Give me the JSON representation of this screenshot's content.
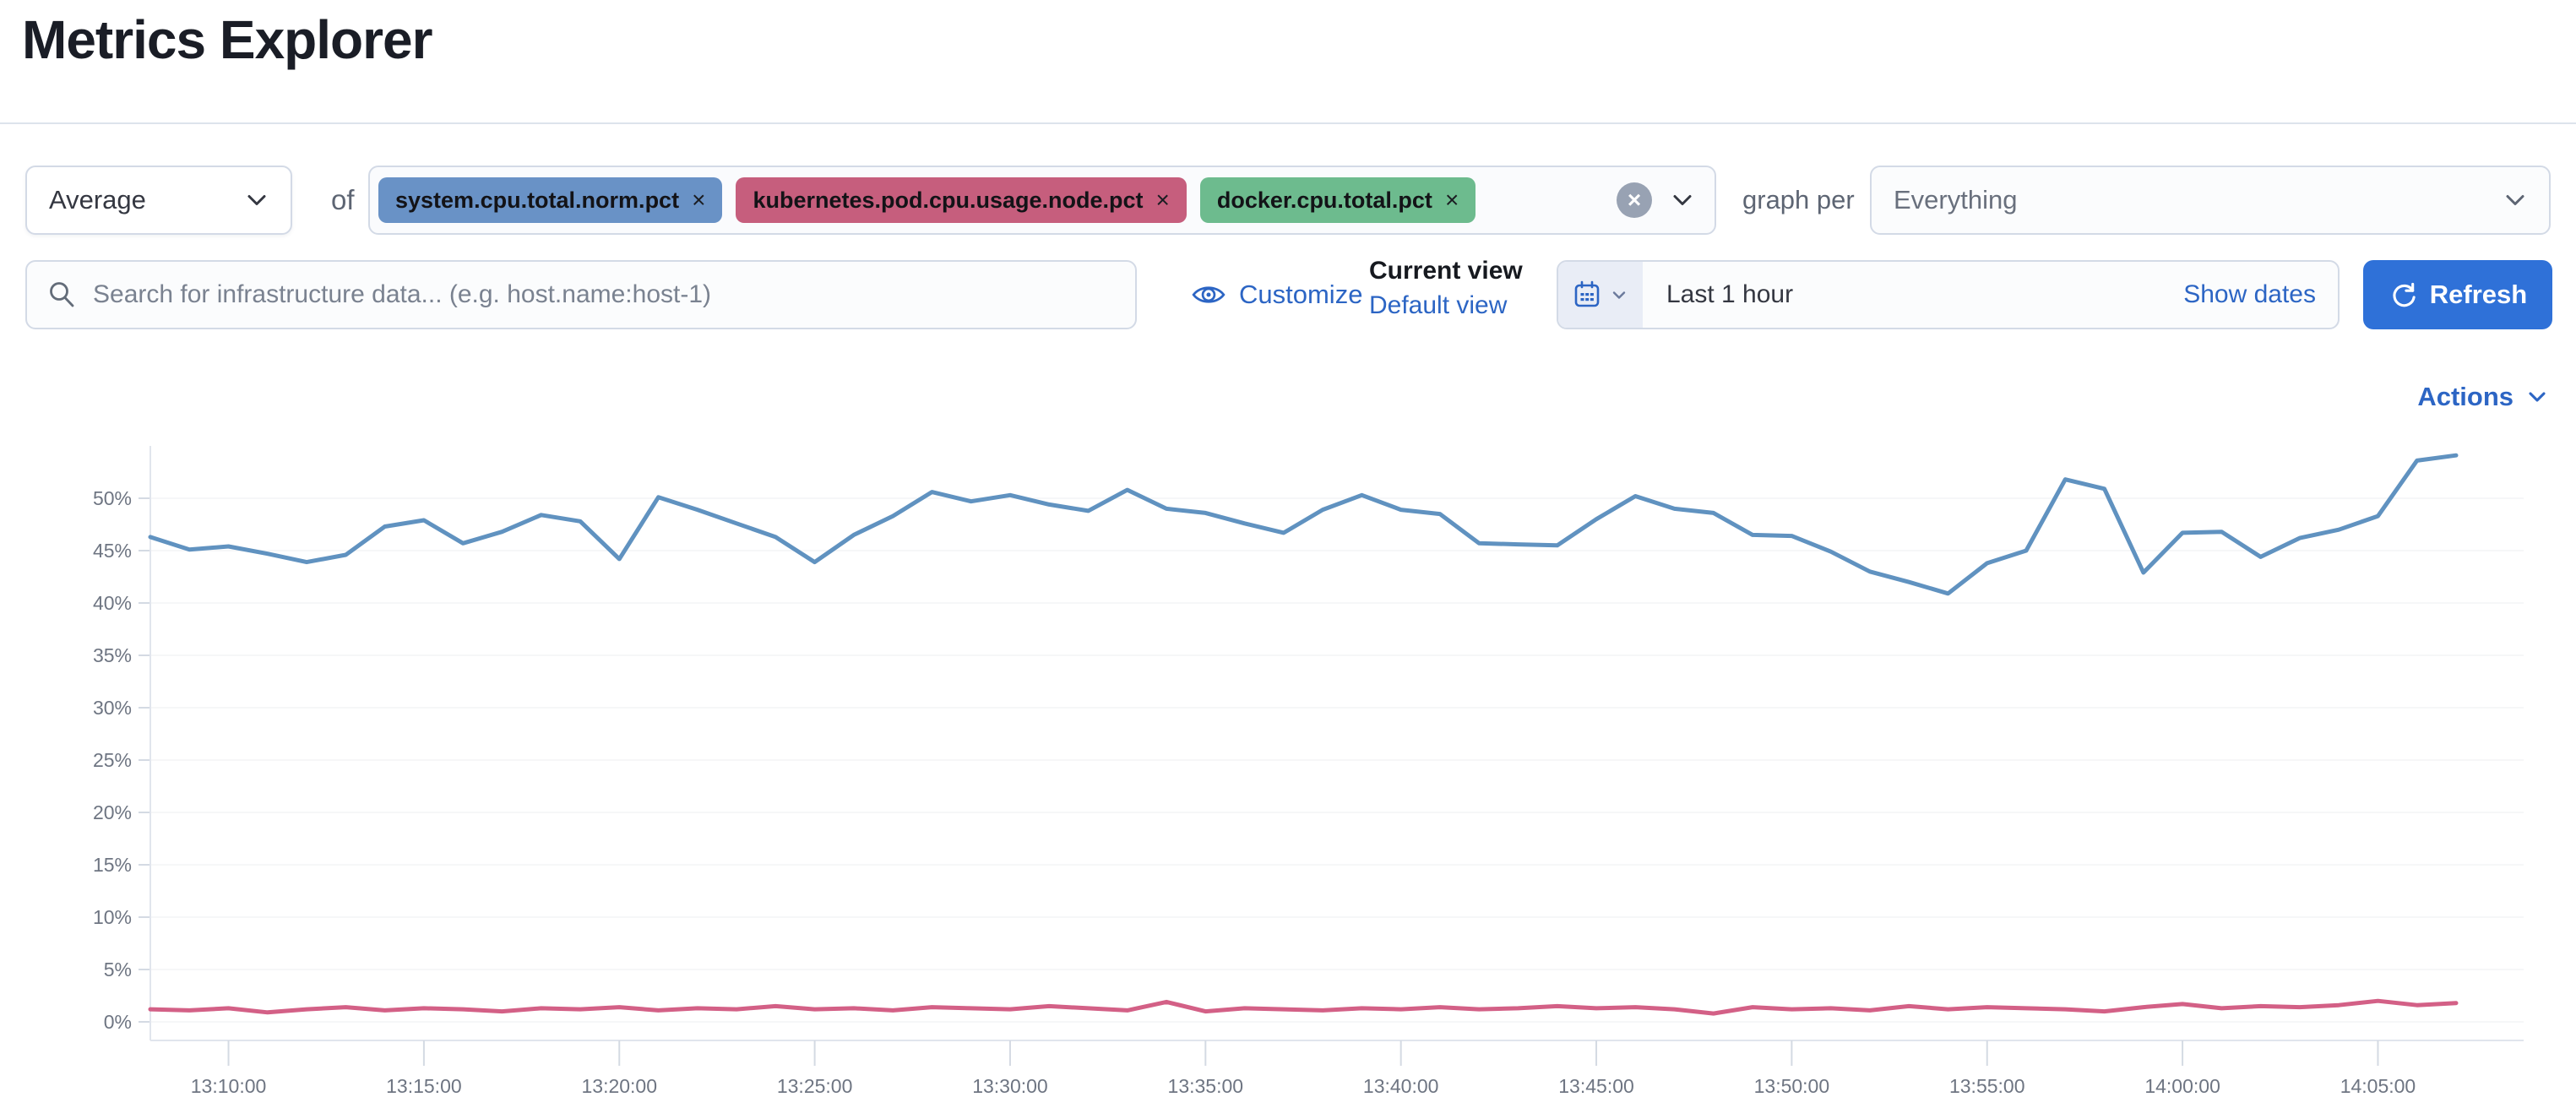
{
  "page": {
    "title": "Metrics Explorer"
  },
  "icons": {
    "close": "×"
  },
  "controls": {
    "aggregation": {
      "value": "Average"
    },
    "of_label": "of",
    "metrics": [
      {
        "label": "system.cpu.total.norm.pct",
        "color": "#6992c6"
      },
      {
        "label": "kubernetes.pod.cpu.usage.node.pct",
        "color": "#c65e7d"
      },
      {
        "label": "docker.cpu.total.pct",
        "color": "#6dbb8e"
      }
    ],
    "graph_per_label": "graph per",
    "group_by": {
      "value": "Everything"
    }
  },
  "toolbar": {
    "search_placeholder": "Search for infrastructure data... (e.g. host.name:host-1)",
    "customize_label": "Customize",
    "current_view_label": "Current view",
    "default_view_label": "Default view",
    "time_range": "Last 1 hour",
    "show_dates_label": "Show dates",
    "refresh_label": "Refresh"
  },
  "chart_header": {
    "actions_label": "Actions"
  },
  "chart_data": {
    "type": "line",
    "title": "",
    "xlabel": "",
    "ylabel": "",
    "y_unit": "%",
    "ylim": [
      0,
      55
    ],
    "grid": "minimal",
    "legend": "none",
    "x": [
      "13:08:00",
      "13:09:00",
      "13:10:00",
      "13:11:00",
      "13:12:00",
      "13:13:00",
      "13:14:00",
      "13:15:00",
      "13:16:00",
      "13:17:00",
      "13:18:00",
      "13:19:00",
      "13:20:00",
      "13:21:00",
      "13:22:00",
      "13:23:00",
      "13:24:00",
      "13:25:00",
      "13:26:00",
      "13:27:00",
      "13:28:00",
      "13:29:00",
      "13:30:00",
      "13:31:00",
      "13:32:00",
      "13:33:00",
      "13:34:00",
      "13:35:00",
      "13:36:00",
      "13:37:00",
      "13:38:00",
      "13:39:00",
      "13:40:00",
      "13:41:00",
      "13:42:00",
      "13:43:00",
      "13:44:00",
      "13:45:00",
      "13:46:00",
      "13:47:00",
      "13:48:00",
      "13:49:00",
      "13:50:00",
      "13:51:00",
      "13:52:00",
      "13:53:00",
      "13:54:00",
      "13:55:00",
      "13:56:00",
      "13:57:00",
      "13:58:00",
      "13:59:00",
      "14:00:00",
      "14:01:00",
      "14:02:00",
      "14:03:00",
      "14:04:00",
      "14:05:00",
      "14:06:00",
      "14:07:00"
    ],
    "x_ticks": [
      "13:10:00",
      "13:15:00",
      "13:20:00",
      "13:25:00",
      "13:30:00",
      "13:35:00",
      "13:40:00",
      "13:45:00",
      "13:50:00",
      "13:55:00",
      "14:00:00",
      "14:05:00"
    ],
    "y_ticks": {
      "values": [
        0,
        5,
        10,
        15,
        20,
        25,
        30,
        35,
        40,
        45,
        50
      ],
      "labels": [
        "0%",
        "5%",
        "10%",
        "15%",
        "20%",
        "25%",
        "30%",
        "35%",
        "40%",
        "45%",
        "50%"
      ]
    },
    "series": [
      {
        "name": "system.cpu.total.norm.pct",
        "color": "#6092C0",
        "values": [
          46.3,
          45.1,
          45.4,
          44.7,
          43.9,
          44.6,
          47.3,
          47.9,
          45.7,
          46.8,
          48.4,
          47.8,
          44.2,
          50.1,
          48.9,
          47.6,
          46.3,
          43.9,
          46.5,
          48.3,
          50.6,
          49.7,
          50.3,
          49.4,
          48.8,
          50.8,
          49.0,
          48.6,
          47.6,
          46.7,
          48.9,
          50.3,
          48.9,
          48.5,
          45.7,
          45.6,
          45.5,
          48.0,
          50.2,
          49.0,
          48.6,
          46.5,
          46.4,
          44.9,
          43.0,
          42.0,
          40.9,
          43.8,
          45.0,
          51.8,
          50.9,
          42.9,
          46.7,
          46.8,
          44.4,
          46.2,
          47.0,
          48.3,
          53.6,
          54.1
        ]
      },
      {
        "name": "kubernetes.pod.cpu.usage.node.pct",
        "color": "#D36086",
        "values": [
          1.2,
          1.1,
          1.3,
          0.9,
          1.2,
          1.4,
          1.1,
          1.3,
          1.2,
          1.0,
          1.3,
          1.2,
          1.4,
          1.1,
          1.3,
          1.2,
          1.5,
          1.2,
          1.3,
          1.1,
          1.4,
          1.3,
          1.2,
          1.5,
          1.3,
          1.1,
          1.9,
          1.0,
          1.3,
          1.2,
          1.1,
          1.3,
          1.2,
          1.4,
          1.2,
          1.3,
          1.5,
          1.3,
          1.4,
          1.2,
          0.8,
          1.4,
          1.2,
          1.3,
          1.1,
          1.5,
          1.2,
          1.4,
          1.3,
          1.2,
          1.0,
          1.4,
          1.7,
          1.3,
          1.5,
          1.4,
          1.6,
          2.0,
          1.6,
          1.8
        ]
      }
    ]
  }
}
